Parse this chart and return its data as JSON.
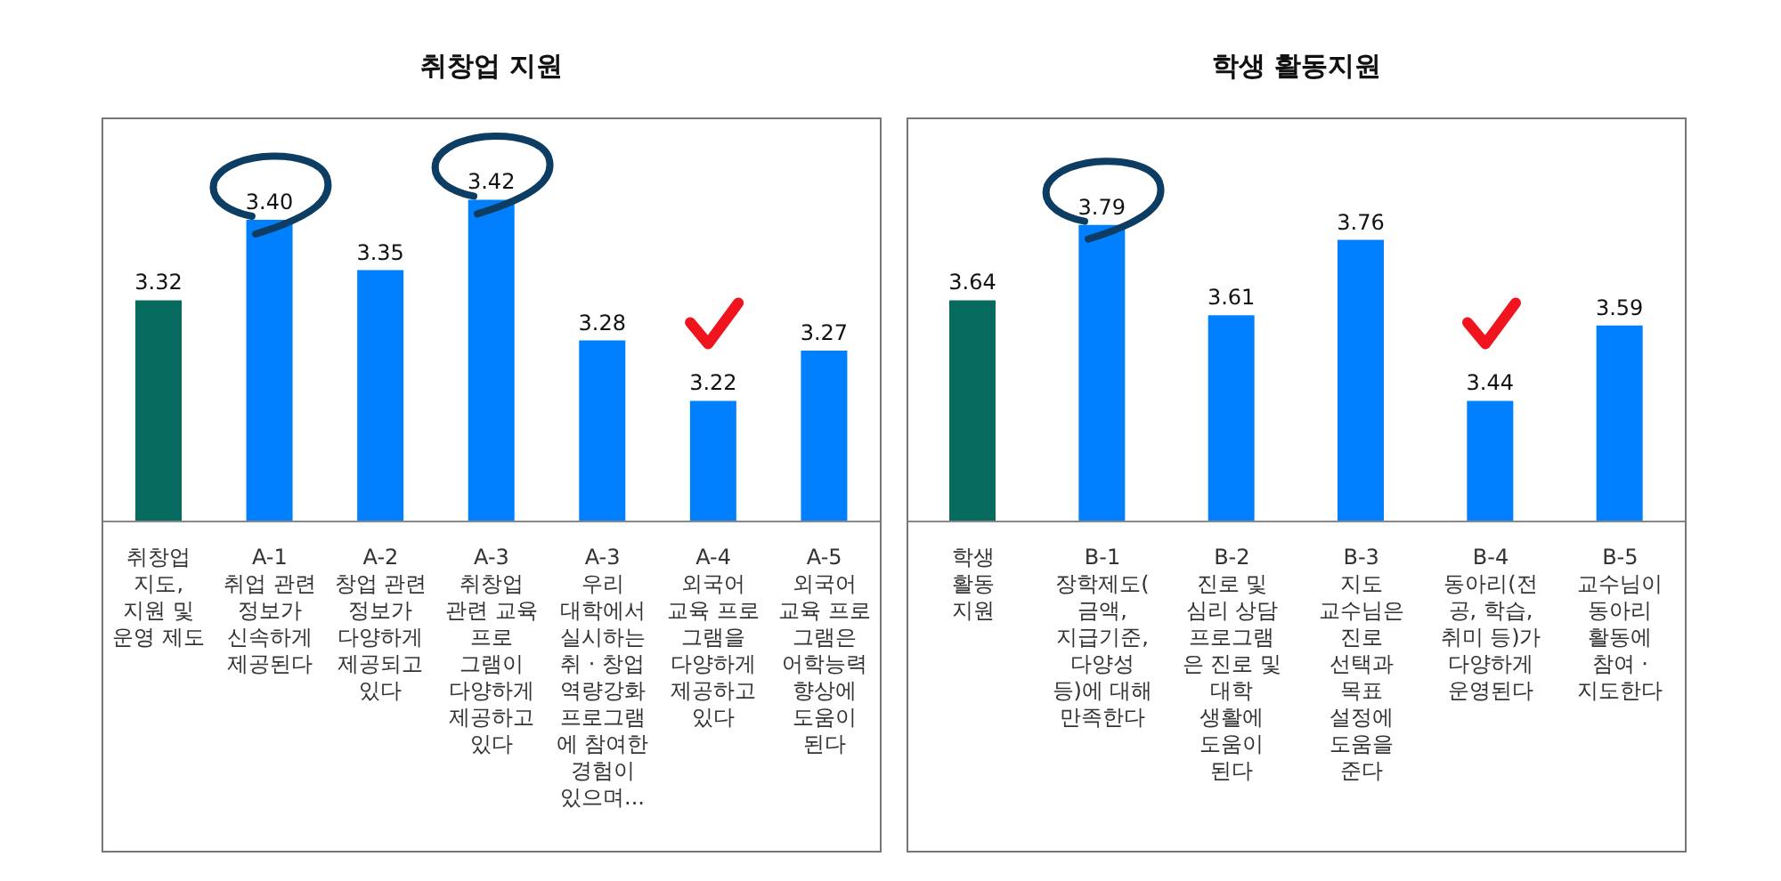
{
  "chart_data": [
    {
      "type": "bar",
      "title": "취창업 지원",
      "categories": [
        "취창업\n지도,\n지원 및\n운영 제도",
        "A-1\n취업 관련\n정보가\n신속하게\n제공된다",
        "A-2\n창업 관련\n정보가\n다양하게\n제공되고\n있다",
        "A-3\n취창업\n관련 교육\n프로\n그램이\n다양하게\n제공하고\n있다",
        "A-3\n우리\n대학에서\n실시하는\n취 · 창업\n역량강화\n프로그램\n에 참여한\n경험이\n있으며...",
        "A-4\n외국어\n교육 프로\n그램을\n다양하게\n제공하고\n있다",
        "A-5\n외국어\n교육 프로\n그램은\n어학능력\n향상에\n도움이\n된다"
      ],
      "values": [
        3.32,
        3.4,
        3.35,
        3.42,
        3.28,
        3.22,
        3.27
      ],
      "colors": [
        "#066b5e",
        "#0080ff",
        "#0080ff",
        "#0080ff",
        "#0080ff",
        "#0080ff",
        "#0080ff"
      ],
      "value_labels": [
        "3.32",
        "3.40",
        "3.35",
        "3.42",
        "3.28",
        "3.22",
        "3.27"
      ],
      "ylim": [
        3.1,
        3.5
      ],
      "grid": false,
      "legend": false
    },
    {
      "type": "bar",
      "title": "학생 활동지원",
      "categories": [
        "학생\n활동\n지원",
        "B-1\n장학제도(\n금액,\n지급기준,\n다양성\n등)에 대해\n만족한다",
        "B-2\n진로 및\n심리 상담\n프로그램\n은 진로 및\n대학\n생활에\n도움이\n된다",
        "B-3\n지도\n교수님은\n진로\n선택과\n목표\n설정에\n도움을\n준다",
        "B-4\n동아리(전\n공, 학습,\n취미 등)가\n다양하게\n운영된다",
        "B-5\n교수님이\n동아리\n활동에\n참여 ·\n지도한다"
      ],
      "values": [
        3.64,
        3.79,
        3.61,
        3.76,
        3.44,
        3.59
      ],
      "colors": [
        "#066b5e",
        "#0080ff",
        "#0080ff",
        "#0080ff",
        "#0080ff",
        "#0080ff"
      ],
      "value_labels": [
        "3.64",
        "3.79",
        "3.61",
        "3.76",
        "3.44",
        "3.59"
      ],
      "ylim": [
        3.2,
        4.0
      ],
      "grid": false,
      "legend": false
    }
  ]
}
